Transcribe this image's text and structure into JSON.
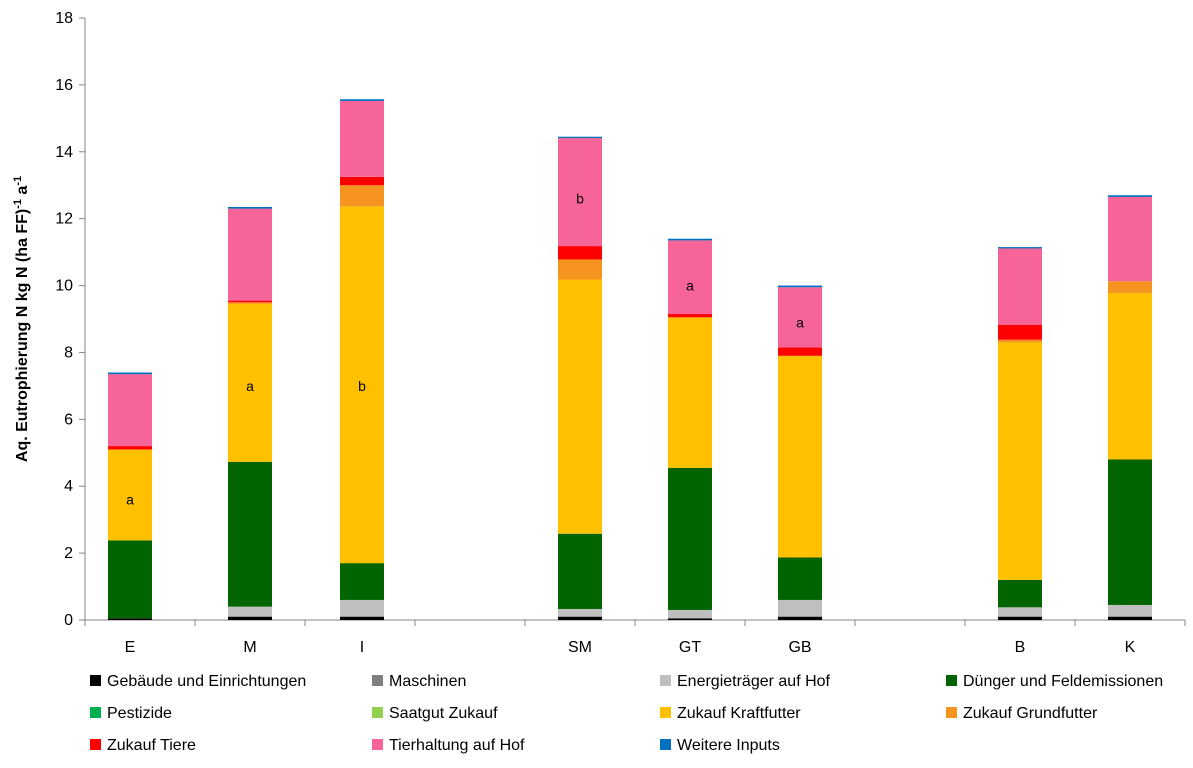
{
  "chart_data": {
    "type": "bar",
    "stacked": true,
    "ylabel_main": "Aq. Eutrophierung N kg N (ha FF)",
    "ylabel_sup1": "-1",
    "ylabel_mid": " a",
    "ylabel_sup2": "-1",
    "ylim": [
      0,
      18
    ],
    "yticks": [
      0,
      2,
      4,
      6,
      8,
      10,
      12,
      14,
      16,
      18
    ],
    "grid": false,
    "legend_position": "bottom",
    "categories": [
      "E",
      "M",
      "I",
      "SM",
      "GT",
      "GB",
      "B",
      "K"
    ],
    "series": [
      {
        "name": "Gebäude und Einrichtungen",
        "color": "#000000",
        "values": [
          0.05,
          0.1,
          0.1,
          0.1,
          0.05,
          0.1,
          0.1,
          0.1
        ]
      },
      {
        "name": "Maschinen",
        "color": "#7f7f7f",
        "values": [
          0.0,
          0.0,
          0.0,
          0.0,
          0.0,
          0.0,
          0.0,
          0.0
        ]
      },
      {
        "name": "Energieträger auf Hof",
        "color": "#bfbfbf",
        "values": [
          0.0,
          0.3,
          0.5,
          0.23,
          0.25,
          0.5,
          0.28,
          0.35
        ]
      },
      {
        "name": "Dünger und Feldemissionen",
        "color": "#006400",
        "values": [
          2.33,
          4.33,
          1.1,
          2.25,
          4.25,
          1.27,
          0.82,
          4.35
        ]
      },
      {
        "name": "Pestizide",
        "color": "#00b050",
        "values": [
          0.0,
          0.0,
          0.0,
          0.0,
          0.0,
          0.0,
          0.0,
          0.0
        ]
      },
      {
        "name": "Saatgut Zukauf",
        "color": "#92d050",
        "values": [
          0.0,
          0.0,
          0.0,
          0.0,
          0.0,
          0.0,
          0.0,
          0.0
        ]
      },
      {
        "name": "Zukauf Kraftfutter",
        "color": "#ffc000",
        "values": [
          2.72,
          4.72,
          10.67,
          7.6,
          4.5,
          6.03,
          7.1,
          4.98
        ]
      },
      {
        "name": "Zukauf Grundfutter",
        "color": "#f79420",
        "values": [
          0.0,
          0.05,
          0.63,
          0.6,
          0.0,
          0.0,
          0.08,
          0.35
        ]
      },
      {
        "name": "Zukauf Tiere",
        "color": "#ff0000",
        "values": [
          0.1,
          0.05,
          0.25,
          0.4,
          0.1,
          0.25,
          0.45,
          0.0
        ]
      },
      {
        "name": "Tierhaltung auf Hof",
        "color": "#f7649a",
        "values": [
          2.15,
          2.75,
          2.27,
          3.23,
          2.2,
          1.8,
          2.28,
          2.52
        ]
      },
      {
        "name": "Weitere Inputs",
        "color": "#0070c0",
        "values": [
          0.05,
          0.05,
          0.05,
          0.04,
          0.05,
          0.05,
          0.04,
          0.05
        ]
      }
    ],
    "annotations": [
      {
        "category": "E",
        "text": "a",
        "y": 3.6
      },
      {
        "category": "M",
        "text": "a",
        "y": 7.0
      },
      {
        "category": "I",
        "text": "b",
        "y": 7.0
      },
      {
        "category": "SM",
        "text": "b",
        "y": 12.6
      },
      {
        "category": "GT",
        "text": "a",
        "y": 10.0
      },
      {
        "category": "GB",
        "text": "a",
        "y": 8.9
      }
    ]
  }
}
